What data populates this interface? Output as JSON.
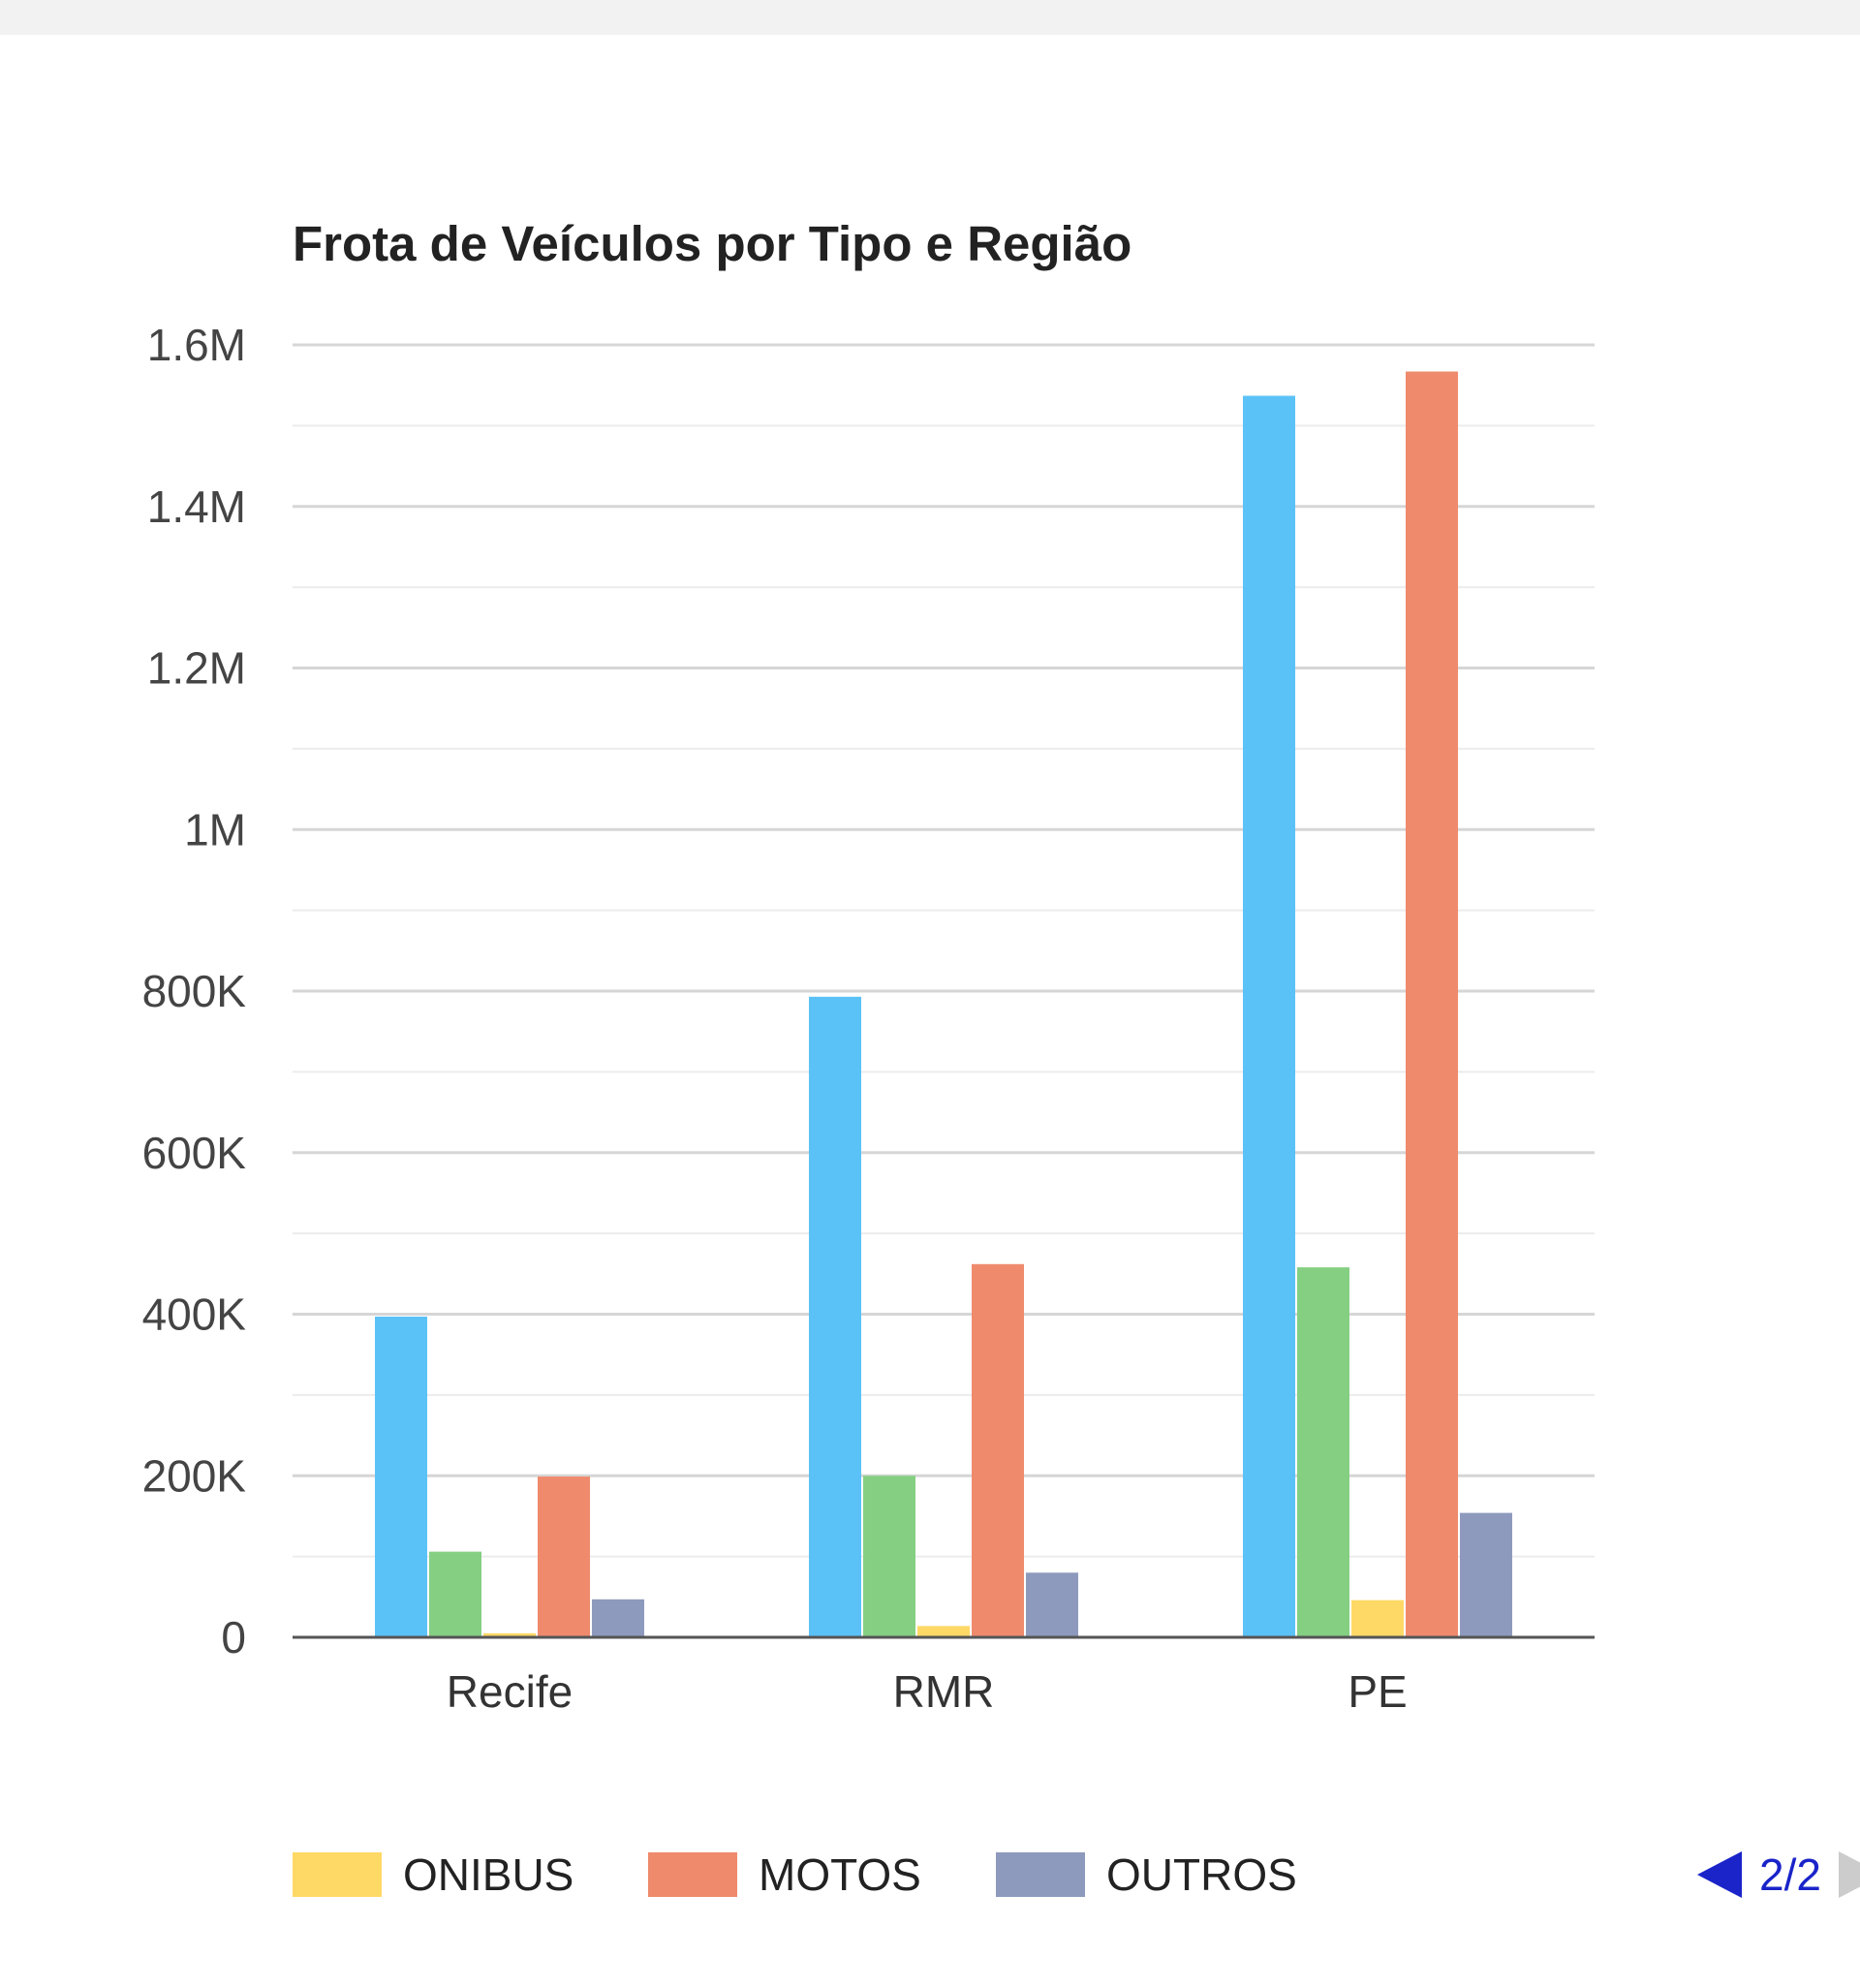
{
  "chart_data": {
    "type": "bar",
    "title": "Frota de Veículos por Tipo e Região",
    "categories": [
      "Recife",
      "RMR",
      "PE"
    ],
    "series": [
      {
        "name": "",
        "color": "#5bc2f7",
        "values": [
          397000,
          793000,
          1537000
        ]
      },
      {
        "name": "",
        "color": "#85cf82",
        "values": [
          106000,
          200000,
          458000
        ]
      },
      {
        "name": "ONIBUS",
        "color": "#ffd966",
        "values": [
          5000,
          14000,
          46000
        ]
      },
      {
        "name": "MOTOS",
        "color": "#ef8a6c",
        "values": [
          199000,
          462000,
          1567000
        ]
      },
      {
        "name": "OUTROS",
        "color": "#8e9abd",
        "values": [
          47000,
          80000,
          154000
        ]
      }
    ],
    "ylim": [
      0,
      1600000
    ],
    "yticks": [
      0,
      200000,
      400000,
      600000,
      800000,
      1000000,
      1200000,
      1400000,
      1600000
    ],
    "ytick_labels": [
      "0",
      "200K",
      "400K",
      "600K",
      "800K",
      "1M",
      "1.2M",
      "1.4M",
      "1.6M"
    ],
    "grid": true,
    "legend_position": "bottom"
  },
  "legend": {
    "items": [
      {
        "label": "ONIBUS",
        "color": "#ffd966"
      },
      {
        "label": "MOTOS",
        "color": "#ef8a6c"
      },
      {
        "label": "OUTROS",
        "color": "#8e9abd"
      }
    ],
    "page_text": "2/2"
  }
}
